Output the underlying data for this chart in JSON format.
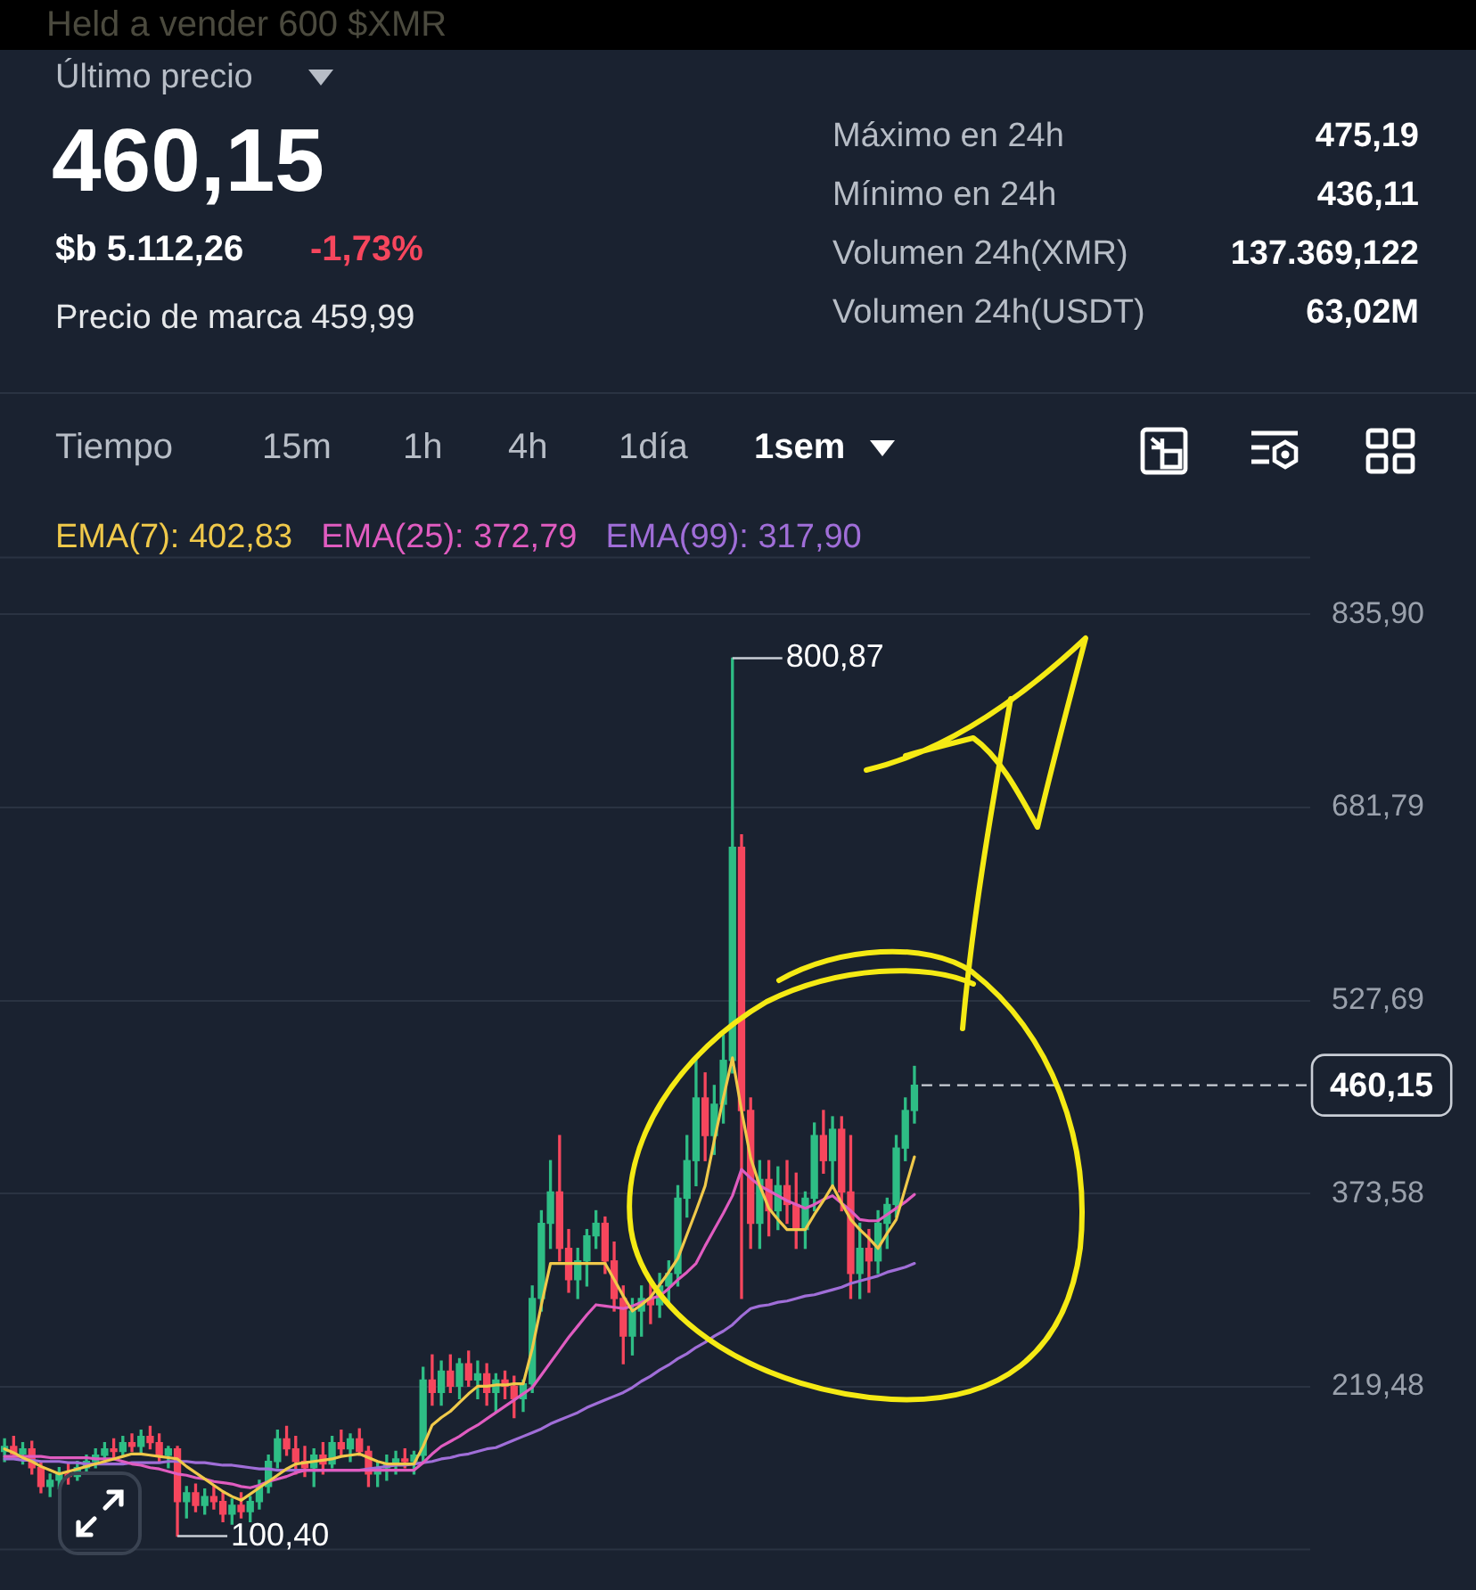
{
  "chart_data": {
    "type": "candlestick",
    "title": "Held a vender 600 $XMR",
    "categories": [
      null,
      null,
      null,
      null,
      null,
      null,
      null,
      null,
      null,
      null,
      null,
      null,
      null,
      null,
      null,
      null,
      null,
      null,
      null,
      null,
      null,
      null,
      null,
      null,
      null,
      null,
      null,
      null,
      null,
      null,
      null,
      null,
      null,
      null,
      null,
      null,
      null,
      null,
      null,
      null,
      null,
      null,
      null,
      null,
      null,
      null,
      null,
      null,
      null,
      null,
      null,
      null,
      null,
      null,
      null,
      null,
      null,
      null,
      null,
      null,
      null,
      null,
      null,
      null,
      null,
      null,
      null,
      null,
      null,
      null,
      null,
      null,
      null,
      null,
      null,
      null,
      null,
      null,
      null,
      null,
      null,
      null,
      null,
      null,
      null,
      null,
      null,
      null,
      null,
      null,
      null,
      null,
      null,
      null,
      null,
      null,
      null,
      null,
      null,
      null,
      null,
      null,
      null,
      null,
      null,
      null,
      null,
      null,
      null,
      null,
      null,
      null,
      null,
      null,
      null,
      null,
      null,
      null,
      null,
      null,
      null,
      null,
      null,
      null,
      null,
      null,
      null,
      null,
      null,
      null,
      null,
      null,
      null,
      null,
      null,
      null,
      null,
      null,
      null,
      null,
      null,
      null,
      null,
      null
    ],
    "ohlc": [
      [
        168,
        178,
        160,
        172
      ],
      [
        172,
        180,
        165,
        166
      ],
      [
        166,
        175,
        158,
        170
      ],
      [
        170,
        176,
        150,
        155
      ],
      [
        155,
        160,
        135,
        140
      ],
      [
        140,
        150,
        132,
        145
      ],
      [
        145,
        155,
        138,
        150
      ],
      [
        150,
        158,
        142,
        148
      ],
      [
        148,
        160,
        145,
        155
      ],
      [
        155,
        165,
        150,
        160
      ],
      [
        160,
        170,
        155,
        165
      ],
      [
        165,
        175,
        160,
        170
      ],
      [
        170,
        178,
        163,
        168
      ],
      [
        168,
        180,
        165,
        175
      ],
      [
        175,
        182,
        168,
        172
      ],
      [
        172,
        185,
        166,
        180
      ],
      [
        180,
        188,
        170,
        175
      ],
      [
        175,
        182,
        160,
        165
      ],
      [
        165,
        172,
        155,
        170
      ],
      [
        170,
        172,
        100.4,
        128
      ],
      [
        128,
        140,
        115,
        135
      ],
      [
        135,
        142,
        120,
        125
      ],
      [
        125,
        138,
        118,
        132
      ],
      [
        132,
        140,
        122,
        128
      ],
      [
        128,
        135,
        112,
        118
      ],
      [
        118,
        130,
        110,
        125
      ],
      [
        125,
        135,
        115,
        120
      ],
      [
        120,
        132,
        112,
        128
      ],
      [
        128,
        145,
        122,
        140
      ],
      [
        140,
        165,
        135,
        160
      ],
      [
        160,
        185,
        155,
        178
      ],
      [
        178,
        188,
        165,
        170
      ],
      [
        170,
        180,
        150,
        160
      ],
      [
        160,
        172,
        148,
        155
      ],
      [
        155,
        170,
        140,
        165
      ],
      [
        165,
        175,
        150,
        158
      ],
      [
        158,
        180,
        155,
        175
      ],
      [
        175,
        185,
        165,
        170
      ],
      [
        170,
        182,
        160,
        178
      ],
      [
        178,
        186,
        165,
        168
      ],
      [
        168,
        172,
        140,
        150
      ],
      [
        150,
        160,
        140,
        155
      ],
      [
        155,
        165,
        145,
        158
      ],
      [
        158,
        168,
        150,
        162
      ],
      [
        162,
        170,
        155,
        160
      ],
      [
        160,
        168,
        150,
        165
      ],
      [
        165,
        235,
        160,
        225
      ],
      [
        225,
        245,
        205,
        215
      ],
      [
        215,
        240,
        205,
        232
      ],
      [
        232,
        245,
        215,
        220
      ],
      [
        220,
        242,
        210,
        238
      ],
      [
        238,
        248,
        220,
        225
      ],
      [
        225,
        240,
        210,
        230
      ],
      [
        230,
        238,
        205,
        215
      ],
      [
        215,
        230,
        200,
        225
      ],
      [
        225,
        232,
        210,
        220
      ],
      [
        220,
        228,
        195,
        210
      ],
      [
        210,
        225,
        200,
        222
      ],
      [
        222,
        300,
        215,
        290
      ],
      [
        290,
        360,
        280,
        350
      ],
      [
        350,
        400,
        330,
        375
      ],
      [
        375,
        420,
        320,
        330
      ],
      [
        330,
        345,
        295,
        305
      ],
      [
        305,
        330,
        290,
        320
      ],
      [
        320,
        345,
        300,
        340
      ],
      [
        340,
        360,
        330,
        350
      ],
      [
        350,
        355,
        310,
        320
      ],
      [
        320,
        335,
        280,
        290
      ],
      [
        290,
        300,
        238,
        260
      ],
      [
        260,
        290,
        245,
        280
      ],
      [
        280,
        300,
        260,
        290
      ],
      [
        290,
        305,
        270,
        285
      ],
      [
        285,
        310,
        275,
        300
      ],
      [
        300,
        320,
        285,
        310
      ],
      [
        310,
        380,
        300,
        370
      ],
      [
        370,
        420,
        355,
        400
      ],
      [
        400,
        480,
        380,
        450
      ],
      [
        450,
        470,
        400,
        420
      ],
      [
        420,
        460,
        405,
        445
      ],
      [
        445,
        500,
        430,
        480
      ],
      [
        480,
        800.87,
        470,
        650
      ],
      [
        650,
        660,
        290,
        440
      ],
      [
        440,
        450,
        330,
        350
      ],
      [
        350,
        400,
        330,
        385
      ],
      [
        385,
        400,
        340,
        360
      ],
      [
        360,
        395,
        345,
        380
      ],
      [
        380,
        400,
        350,
        365
      ],
      [
        365,
        390,
        330,
        345
      ],
      [
        345,
        375,
        330,
        370
      ],
      [
        370,
        430,
        360,
        420
      ],
      [
        420,
        440,
        390,
        400
      ],
      [
        400,
        435,
        380,
        425
      ],
      [
        425,
        435,
        360,
        375
      ],
      [
        375,
        420,
        290,
        310
      ],
      [
        310,
        350,
        290,
        330
      ],
      [
        330,
        345,
        295,
        320
      ],
      [
        320,
        360,
        310,
        350
      ],
      [
        350,
        370,
        330,
        365
      ],
      [
        365,
        420,
        355,
        410
      ],
      [
        410,
        450,
        400,
        440
      ],
      [
        440,
        475.19,
        430,
        460.15
      ],
      null,
      null,
      null,
      null,
      null,
      null,
      null,
      null,
      null,
      null,
      null,
      null,
      null,
      null,
      null,
      null,
      null,
      null,
      null,
      null,
      null,
      null,
      null,
      null,
      null,
      null,
      null,
      null,
      null,
      null,
      null,
      null,
      null,
      null,
      null,
      null,
      null,
      null,
      null,
      null,
      null,
      null,
      null
    ],
    "series": [
      {
        "type": "line",
        "name": "EMA(7): 402,83",
        "color": "#f0c94a",
        "values": [
          170,
          167,
          163,
          160,
          156,
          153,
          150,
          152,
          154,
          156,
          158,
          160,
          162,
          164,
          166,
          166,
          165,
          164,
          163,
          162,
          156,
          151,
          146,
          141,
          136,
          132,
          129,
          134,
          139,
          144,
          149,
          154,
          158,
          159,
          160,
          161,
          162,
          164,
          165,
          166,
          163,
          160,
          158,
          158,
          158,
          158,
          172,
          189,
          195,
          200,
          207,
          214,
          220,
          220,
          221,
          221,
          222,
          222,
          250,
          285,
          318,
          318,
          318,
          318,
          318,
          318,
          318,
          305,
          292,
          280,
          285,
          291,
          301,
          311,
          322,
          341,
          360,
          380,
          416,
          450,
          482,
          440,
          402,
          380,
          362,
          353,
          345,
          345,
          345,
          357,
          368,
          380,
          366,
          353,
          345,
          338,
          330,
          342,
          353,
          378,
          403,
          null,
          null,
          null,
          null,
          null,
          null,
          null,
          null,
          null,
          null,
          null,
          null,
          null,
          null,
          null,
          null,
          null,
          null,
          null,
          null,
          null,
          null,
          null,
          null,
          null,
          null,
          null,
          null,
          null,
          null,
          null,
          null,
          null,
          null,
          null,
          null,
          null,
          null,
          null,
          null,
          null,
          null,
          null
        ]
      },
      {
        "type": "line",
        "name": "EMA(25): 372,79",
        "color": "#e05cc0",
        "values": [
          164,
          164,
          164,
          164,
          164,
          163,
          163,
          163,
          163,
          163,
          162,
          162,
          162,
          160,
          158,
          157,
          155,
          154,
          152,
          150,
          149,
          147,
          146,
          144,
          143,
          142,
          140,
          139,
          141,
          144,
          146,
          148,
          151,
          153,
          153,
          153,
          153,
          153,
          153,
          153,
          153,
          153,
          153,
          153,
          153,
          153,
          159,
          166,
          172,
          176,
          180,
          185,
          189,
          194,
          199,
          204,
          209,
          214,
          219,
          229,
          239,
          249,
          259,
          268,
          277,
          285,
          284,
          283,
          282,
          284,
          287,
          290,
          292,
          298,
          305,
          311,
          318,
          332,
          345,
          358,
          372,
          393,
          386,
          380,
          376,
          372,
          368,
          365,
          362,
          365,
          369,
          372,
          366,
          360,
          353,
          352,
          352,
          357,
          362,
          367,
          373,
          null,
          null,
          null,
          null,
          null,
          null,
          null,
          null,
          null,
          null,
          null,
          null,
          null,
          null,
          null,
          null,
          null,
          null,
          null,
          null,
          null,
          null,
          null,
          null,
          null,
          null,
          null,
          null,
          null,
          null,
          null,
          null,
          null,
          null,
          null,
          null,
          null,
          null,
          null,
          null,
          null,
          null,
          null
        ]
      },
      {
        "type": "line",
        "name": "EMA(99): 317,90",
        "color": "#a06ed8",
        "values": [
          162,
          162,
          161,
          161,
          160,
          160,
          160,
          159,
          159,
          158,
          158,
          158,
          158,
          158,
          159,
          159,
          159,
          159,
          160,
          160,
          160,
          159,
          159,
          158,
          157,
          157,
          156,
          155,
          154,
          154,
          153,
          153,
          153,
          153,
          153,
          153,
          153,
          153,
          153,
          153,
          154,
          155,
          156,
          157,
          157,
          158,
          159,
          160,
          162,
          163,
          165,
          166,
          168,
          170,
          171,
          174,
          177,
          180,
          183,
          186,
          190,
          193,
          196,
          199,
          203,
          206,
          209,
          212,
          215,
          219,
          224,
          228,
          233,
          237,
          242,
          246,
          251,
          255,
          260,
          264,
          269,
          276,
          282,
          284,
          285,
          287,
          288,
          290,
          292,
          293,
          295,
          297,
          299,
          302,
          304,
          306,
          308,
          311,
          313,
          315,
          318,
          null,
          null,
          null,
          null,
          null,
          null,
          null,
          null,
          null,
          null,
          null,
          null,
          null,
          null,
          null,
          null,
          null,
          null,
          null,
          null,
          null,
          null,
          null,
          null,
          null,
          null,
          null,
          null,
          null,
          null,
          null,
          null,
          null,
          null,
          null,
          null,
          null,
          null,
          null,
          null,
          null,
          null,
          null
        ]
      }
    ],
    "ylim": [
      89,
      882
    ],
    "yticks": [
      {
        "value": 219.48,
        "label": "219,48"
      },
      {
        "value": 373.58,
        "label": "373,58"
      },
      {
        "value": 527.69,
        "label": "527,69"
      },
      {
        "value": 681.79,
        "label": "681,79"
      },
      {
        "value": 835.9,
        "label": "835,90"
      }
    ],
    "grid": "y",
    "legend": "top",
    "tick_labels": "y",
    "marker": "none",
    "line_style": "solid",
    "ref_lines": [
      {
        "axis": "y",
        "value": 460.15,
        "label": "460,15",
        "color": "#c9ced6",
        "line_style": "dashed"
      }
    ],
    "annotations": [
      "Último precio",
      "460,15",
      "$b 5.112,26",
      "-1,73%",
      "Precio de marca 459,99",
      "Máximo en 24h",
      "475,19",
      "Mínimo en 24h",
      "436,11",
      "Volumen 24h(XMR)",
      "137.369,122",
      "Volumen 24h(USDT)",
      "63,02M",
      "Tiempo",
      "15m",
      "1h",
      "4h",
      "1día",
      "1sem",
      "800,87",
      "100,40"
    ]
  }
}
